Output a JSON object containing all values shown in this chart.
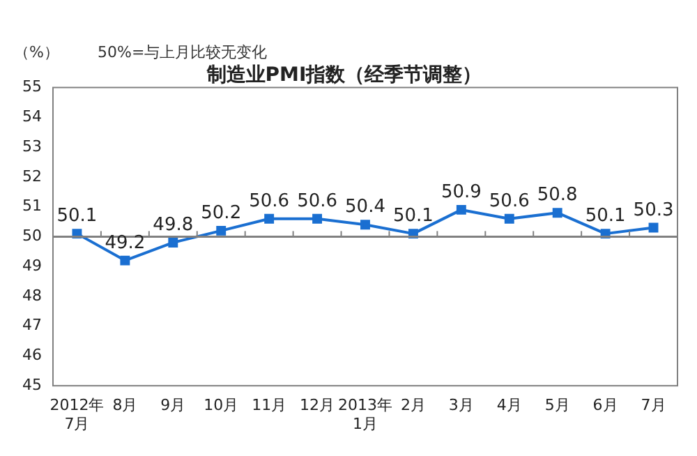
{
  "chart_data": {
    "type": "line",
    "title": "制造业PMI指数（经季节调整）",
    "ylabel": "（%）",
    "annotations": [
      "50%=与上月比较无变化"
    ],
    "categories": [
      "2012年\n7月",
      "8月",
      "9月",
      "10月",
      "11月",
      "12月",
      "2013年\n1月",
      "2月",
      "3月",
      "4月",
      "5月",
      "6月",
      "7月"
    ],
    "series": [
      {
        "color": "#1a6fd1",
        "values": [
          50.1,
          49.2,
          49.8,
          50.2,
          50.6,
          50.6,
          50.4,
          50.1,
          50.9,
          50.6,
          50.8,
          50.1,
          50.3
        ]
      }
    ],
    "ylim": [
      45,
      55
    ],
    "yticks": [
      45,
      46,
      47,
      48,
      49,
      50,
      51,
      52,
      53,
      54,
      55
    ],
    "ref_lines": [
      {
        "axis": "y",
        "value": 50,
        "color": "#808080"
      }
    ],
    "marker": "square",
    "line_style": "solid",
    "data_labels": true,
    "grid": false,
    "legend": false
  }
}
